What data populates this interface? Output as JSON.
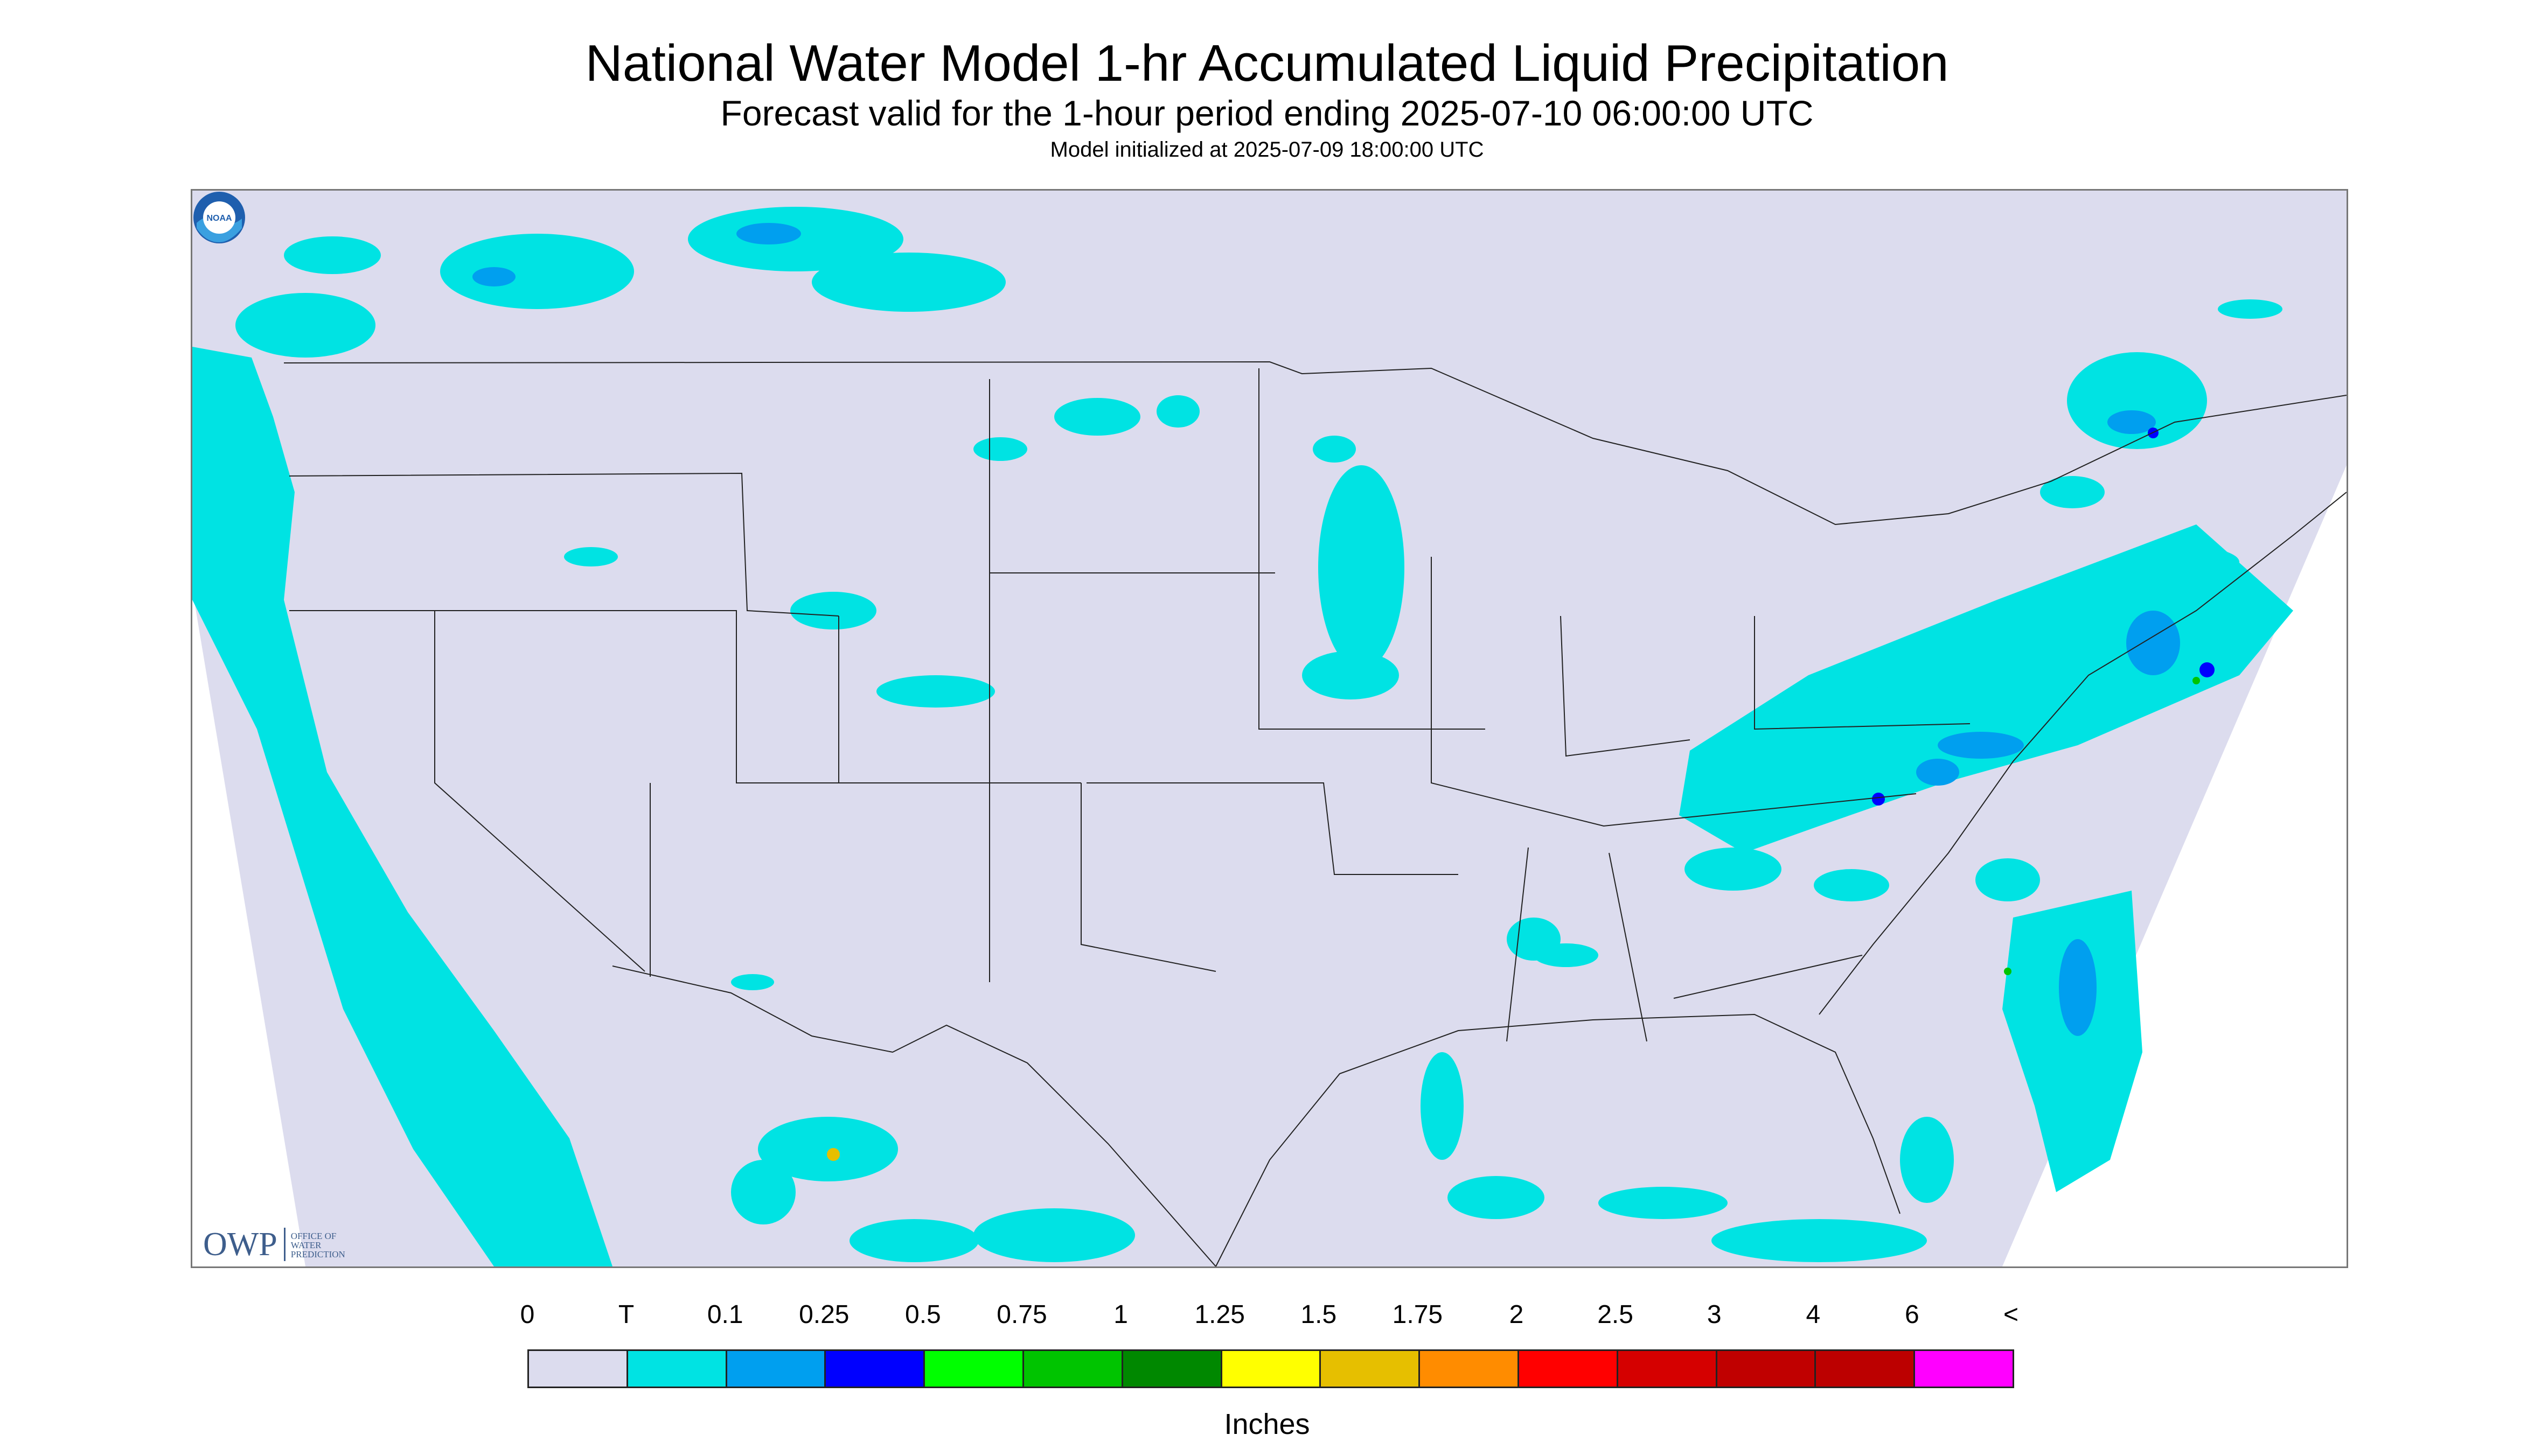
{
  "title": "National Water Model 1-hr Accumulated Liquid Precipitation",
  "subtitle": "Forecast valid for the 1-hour period ending 2025-07-10 06:00:00 UTC",
  "init_line": "Model initialized at 2025-07-09 18:00:00 UTC",
  "logos": {
    "owp_mark": "OWP",
    "owp_text": [
      "OFFICE OF",
      "WATER",
      "PREDICTION"
    ],
    "noaa_text": "NOAA"
  },
  "colors": {
    "background": "#dcdcee",
    "trace": "#00e3e3",
    "light_blue": "#009fef"
  },
  "legend": {
    "unit": "Inches",
    "labels": [
      "0",
      "T",
      "0.1",
      "0.25",
      "0.5",
      "0.75",
      "1",
      "1.25",
      "1.5",
      "1.75",
      "2",
      "2.5",
      "3",
      "4",
      "6",
      "<"
    ],
    "colors": [
      "#dcdcee",
      "#00e3e3",
      "#009fef",
      "#0000ff",
      "#00ff00",
      "#00c400",
      "#008800",
      "#ffff00",
      "#e6bf00",
      "#ff8c00",
      "#ff0000",
      "#d50000",
      "#c00000",
      "#bc0000",
      "#ff00ff",
      "#9856c8"
    ]
  }
}
